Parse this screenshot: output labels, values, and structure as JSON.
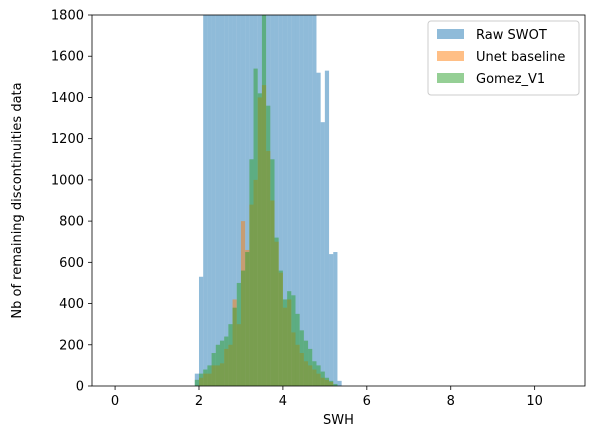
{
  "chart_data": {
    "type": "bar",
    "title": "",
    "xlabel": "SWH",
    "ylabel": "Nb of remaining discontinuities data",
    "xlim": [
      -0.55,
      11.2
    ],
    "ylim": [
      0,
      1800
    ],
    "xticks": [
      0,
      2,
      4,
      6,
      8,
      10
    ],
    "yticks": [
      0,
      200,
      400,
      600,
      800,
      1000,
      1200,
      1400,
      1600,
      1800
    ],
    "bin_width": 0.1,
    "grid": false,
    "legend_position": "top-right",
    "series": [
      {
        "name": "Raw SWOT",
        "color": "#1f77b4",
        "opacity": 0.5,
        "bins": [
          [
            1.95,
            60
          ],
          [
            2.05,
            530
          ],
          [
            2.15,
            1800
          ],
          [
            2.25,
            1800
          ],
          [
            2.35,
            1800
          ],
          [
            2.45,
            1800
          ],
          [
            2.55,
            1800
          ],
          [
            2.65,
            1800
          ],
          [
            2.75,
            1800
          ],
          [
            2.85,
            1800
          ],
          [
            2.95,
            1800
          ],
          [
            3.05,
            1800
          ],
          [
            3.15,
            1800
          ],
          [
            3.25,
            1800
          ],
          [
            3.35,
            1800
          ],
          [
            3.45,
            1800
          ],
          [
            3.55,
            1800
          ],
          [
            3.65,
            1800
          ],
          [
            3.75,
            1800
          ],
          [
            3.85,
            1800
          ],
          [
            3.95,
            1800
          ],
          [
            4.05,
            1800
          ],
          [
            4.15,
            1800
          ],
          [
            4.25,
            1800
          ],
          [
            4.35,
            1800
          ],
          [
            4.45,
            1800
          ],
          [
            4.55,
            1800
          ],
          [
            4.65,
            1800
          ],
          [
            4.75,
            1800
          ],
          [
            4.85,
            1520
          ],
          [
            4.95,
            1280
          ],
          [
            5.05,
            1530
          ],
          [
            5.15,
            640
          ],
          [
            5.25,
            650
          ],
          [
            5.35,
            25
          ]
        ]
      },
      {
        "name": "Unet baseline",
        "color": "#ff7f0e",
        "opacity": 0.5,
        "bins": [
          [
            2.05,
            40
          ],
          [
            2.15,
            60
          ],
          [
            2.25,
            60
          ],
          [
            2.35,
            100
          ],
          [
            2.45,
            100
          ],
          [
            2.55,
            110
          ],
          [
            2.65,
            180
          ],
          [
            2.75,
            200
          ],
          [
            2.85,
            420
          ],
          [
            2.95,
            300
          ],
          [
            3.05,
            800
          ],
          [
            3.15,
            660
          ],
          [
            3.25,
            880
          ],
          [
            3.35,
            1000
          ],
          [
            3.45,
            1400
          ],
          [
            3.55,
            1460
          ],
          [
            3.65,
            1140
          ],
          [
            3.75,
            900
          ],
          [
            3.85,
            700
          ],
          [
            3.95,
            550
          ],
          [
            4.05,
            380
          ],
          [
            4.15,
            420
          ],
          [
            4.25,
            260
          ],
          [
            4.35,
            200
          ],
          [
            4.45,
            160
          ],
          [
            4.55,
            120
          ],
          [
            4.65,
            100
          ],
          [
            4.75,
            80
          ],
          [
            4.85,
            60
          ],
          [
            4.95,
            40
          ],
          [
            5.05,
            30
          ],
          [
            5.15,
            20
          ]
        ]
      },
      {
        "name": "Gomez_V1",
        "color": "#2ca02c",
        "opacity": 0.5,
        "bins": [
          [
            1.95,
            30
          ],
          [
            2.05,
            60
          ],
          [
            2.15,
            80
          ],
          [
            2.25,
            100
          ],
          [
            2.35,
            160
          ],
          [
            2.45,
            200
          ],
          [
            2.55,
            220
          ],
          [
            2.65,
            240
          ],
          [
            2.75,
            300
          ],
          [
            2.85,
            380
          ],
          [
            2.95,
            500
          ],
          [
            3.05,
            560
          ],
          [
            3.15,
            650
          ],
          [
            3.25,
            1100
          ],
          [
            3.35,
            1540
          ],
          [
            3.45,
            1420
          ],
          [
            3.55,
            1800
          ],
          [
            3.65,
            1360
          ],
          [
            3.75,
            1100
          ],
          [
            3.85,
            720
          ],
          [
            3.95,
            560
          ],
          [
            4.05,
            420
          ],
          [
            4.15,
            460
          ],
          [
            4.25,
            440
          ],
          [
            4.35,
            350
          ],
          [
            4.45,
            270
          ],
          [
            4.55,
            220
          ],
          [
            4.65,
            180
          ],
          [
            4.75,
            120
          ],
          [
            4.85,
            100
          ],
          [
            4.95,
            70
          ],
          [
            5.05,
            40
          ],
          [
            5.15,
            25
          ],
          [
            5.25,
            10
          ]
        ]
      }
    ]
  }
}
